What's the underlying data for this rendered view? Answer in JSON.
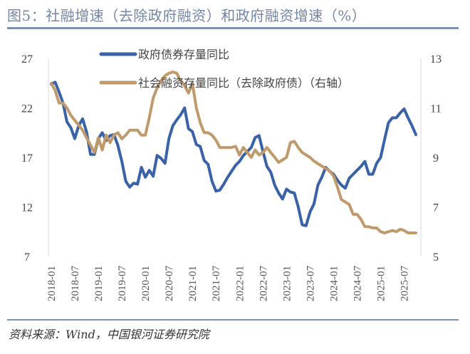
{
  "title": "图5：社融增速（去除政府融资）和政府融资增速（%）",
  "source": "资料来源：Wind，中国银河证券研究院",
  "colors": {
    "gov_bond": "#3a62a8",
    "social_financing": "#c09a6b",
    "title": "#7486a8",
    "rule": "#7d8fb3"
  },
  "chart_data": {
    "type": "line",
    "title": "图5：社融增速（去除政府融资）和政府融资增速（%）",
    "legend_placement": "top-left inside",
    "grid": false,
    "y_left": {
      "range": [
        7,
        27
      ],
      "ticks": [
        "27",
        "22",
        "17",
        "12",
        "7"
      ]
    },
    "y_right": {
      "range": [
        5,
        13
      ],
      "ticks": [
        "13",
        "11",
        "9",
        "7",
        "5"
      ]
    },
    "x_ticks": [
      "2018-01",
      "2018-07",
      "2019-01",
      "2019-07",
      "2020-01",
      "2020-07",
      "2021-01",
      "2021-07",
      "2022-01",
      "2022-07",
      "2023-01",
      "2023-07",
      "2024-01",
      "2024-07",
      "2025-01",
      "2025-07"
    ],
    "x": [
      "2018-01",
      "2018-02",
      "2018-03",
      "2018-04",
      "2018-05",
      "2018-06",
      "2018-07",
      "2018-08",
      "2018-09",
      "2018-10",
      "2018-11",
      "2018-12",
      "2019-01",
      "2019-02",
      "2019-03",
      "2019-04",
      "2019-05",
      "2019-06",
      "2019-07",
      "2019-08",
      "2019-09",
      "2019-10",
      "2019-11",
      "2019-12",
      "2020-01",
      "2020-02",
      "2020-03",
      "2020-04",
      "2020-05",
      "2020-06",
      "2020-07",
      "2020-08",
      "2020-09",
      "2020-10",
      "2020-11",
      "2020-12",
      "2021-01",
      "2021-02",
      "2021-03",
      "2021-04",
      "2021-05",
      "2021-06",
      "2021-07",
      "2021-08",
      "2021-09",
      "2021-10",
      "2021-11",
      "2021-12",
      "2022-01",
      "2022-02",
      "2022-03",
      "2022-04",
      "2022-05",
      "2022-06",
      "2022-07",
      "2022-08",
      "2022-09",
      "2022-10",
      "2022-11",
      "2022-12",
      "2023-01",
      "2023-02",
      "2023-03",
      "2023-04",
      "2023-05",
      "2023-06",
      "2023-07",
      "2023-08",
      "2023-09",
      "2023-10",
      "2023-11",
      "2023-12",
      "2024-01",
      "2024-02",
      "2024-03",
      "2024-04",
      "2024-05",
      "2024-06",
      "2024-07",
      "2024-08",
      "2024-09",
      "2024-10",
      "2024-11",
      "2024-12",
      "2025-01",
      "2025-02",
      "2025-03",
      "2025-04",
      "2025-05",
      "2025-06",
      "2025-07",
      "2025-08",
      "2025-09",
      "2025-10"
    ],
    "series": [
      {
        "name": "政府债券存量同比",
        "axis": "left",
        "color": "#3a62a8",
        "values": [
          24.4,
          24.6,
          23.6,
          22.5,
          20.6,
          20.0,
          18.9,
          20.2,
          20.9,
          19.6,
          17.3,
          17.3,
          18.9,
          19.5,
          18.7,
          19.2,
          19.3,
          18.2,
          16.6,
          14.6,
          14.0,
          14.4,
          14.3,
          16.0,
          15.0,
          15.7,
          15.1,
          17.2,
          16.9,
          16.4,
          18.9,
          20.2,
          20.8,
          21.3,
          22.0,
          19.9,
          19.6,
          18.3,
          18.1,
          16.7,
          16.3,
          14.6,
          13.6,
          13.7,
          14.3,
          15.0,
          15.6,
          16.2,
          16.6,
          17.2,
          17.6,
          18.0,
          19.0,
          19.2,
          17.6,
          16.1,
          15.5,
          14.2,
          13.4,
          12.8,
          13.8,
          13.5,
          13.4,
          12.0,
          10.2,
          10.1,
          11.5,
          12.3,
          14.2,
          15.0,
          16.0,
          15.6,
          15.3,
          14.7,
          14.2,
          13.9,
          14.9,
          15.3,
          15.7,
          16.1,
          16.6,
          15.3,
          15.3,
          16.4,
          17.0,
          18.8,
          20.5,
          21.0,
          21.0,
          21.5,
          21.9,
          21.0,
          20.2,
          19.3
        ]
      },
      {
        "name": "社会融资存量同比（去除政府债）（右轴）",
        "axis": "right",
        "color": "#c09a6b",
        "values": [
          12.0,
          11.7,
          11.2,
          11.2,
          11.0,
          10.7,
          10.5,
          10.3,
          10.1,
          9.8,
          9.5,
          9.2,
          9.8,
          9.3,
          9.9,
          9.6,
          9.9,
          10.0,
          9.75,
          9.9,
          10.1,
          10.1,
          10.1,
          9.9,
          9.9,
          10.6,
          11.4,
          11.8,
          12.1,
          12.3,
          12.4,
          12.45,
          12.4,
          12.1,
          11.9,
          11.6,
          12.0,
          11.0,
          10.4,
          10.0,
          10.0,
          9.9,
          9.7,
          9.4,
          9.4,
          9.4,
          9.4,
          9.45,
          9.1,
          9.4,
          9.2,
          9.0,
          9.3,
          9.1,
          9.2,
          9.4,
          9.2,
          9.0,
          8.8,
          8.9,
          9.0,
          9.6,
          9.65,
          9.4,
          9.2,
          9.1,
          9.0,
          8.85,
          8.75,
          8.65,
          8.55,
          8.45,
          8.25,
          7.8,
          7.3,
          7.2,
          7.1,
          6.7,
          6.7,
          6.5,
          6.2,
          6.2,
          6.15,
          6.15,
          6.0,
          5.95,
          6.0,
          6.05,
          6.0,
          6.1,
          6.05,
          5.95,
          5.95,
          5.95
        ]
      }
    ]
  }
}
